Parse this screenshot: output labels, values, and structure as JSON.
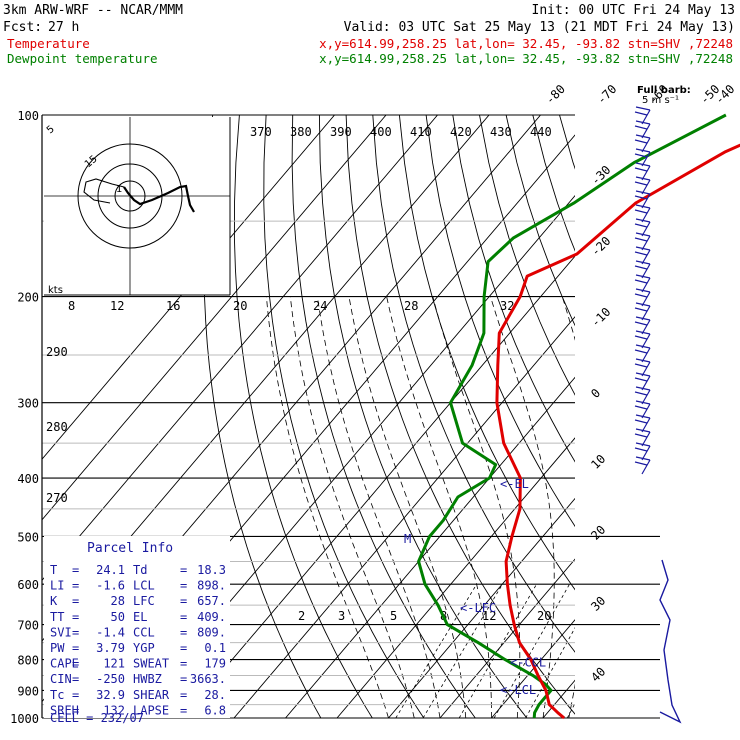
{
  "header": {
    "model": "3km ARW-WRF -- NCAR/MMM",
    "init": "Init: 00 UTC Fri 24 May 13",
    "fcst_label": "Fcst:",
    "fcst_value": "27 h",
    "valid": "Valid: 03 UTC Sat 25 May 13 (21 MDT Fri 24 May 13)"
  },
  "legend": [
    {
      "name": "Temperature",
      "info": "x,y=614.99,258.25   lat,lon= 32.45, -93.82   stn=SHV ,72248",
      "color": "#e00000"
    },
    {
      "name": "Dewpoint temperature",
      "info": "x,y=614.99,258.25   lat,lon= 32.45, -93.82   stn=SHV ,72248",
      "color": "#008000"
    }
  ],
  "full_barb": {
    "line1": "Full barb:",
    "line2": "5 m s⁻¹"
  },
  "hodograph": {
    "units": "kts",
    "ring_labels": [
      "5",
      "10",
      "15"
    ],
    "marker": "1"
  },
  "chart_data": {
    "type": "line",
    "title": "",
    "xlabel": "",
    "ylabel": "",
    "y_log_scale": true,
    "y_reversed": true,
    "ylim": [
      1000,
      100
    ],
    "pressure_levels": [
      100,
      200,
      300,
      400,
      500,
      600,
      700,
      800,
      900,
      1000
    ],
    "pressure_labels": [
      "100",
      "200",
      "300",
      "400",
      "500",
      "600",
      "700",
      "800",
      "900",
      "1000"
    ],
    "minor_pressure_levels": [
      150,
      250,
      350,
      450,
      550,
      650,
      750,
      850,
      950
    ],
    "isotherm_labels": [
      "-80",
      "-70",
      "-60",
      "-50",
      "-40",
      "-30",
      "-20",
      "-10",
      "0",
      "10",
      "20",
      "30",
      "40"
    ],
    "theta_e_labels": [
      "370",
      "380",
      "390",
      "400",
      "410",
      "420",
      "430",
      "440"
    ],
    "theta_labels_left": [
      "290",
      "280",
      "270"
    ],
    "mixing_ratio_labels_top": [
      "8",
      "12",
      "16",
      "20",
      "24",
      "28",
      "32"
    ],
    "mixing_ratio_labels_bottom": [
      "2",
      "3",
      "5",
      "8",
      "12",
      "20"
    ],
    "series": [
      {
        "name": "Temperature",
        "color": "#e00000",
        "points": [
          [
            100,
            -28
          ],
          [
            115,
            -38
          ],
          [
            140,
            -47
          ],
          [
            170,
            -50
          ],
          [
            185,
            -56
          ],
          [
            200,
            -54
          ],
          [
            230,
            -52
          ],
          [
            260,
            -47
          ],
          [
            300,
            -41
          ],
          [
            350,
            -33
          ],
          [
            400,
            -24
          ],
          [
            450,
            -19
          ],
          [
            500,
            -16
          ],
          [
            550,
            -13
          ],
          [
            600,
            -9
          ],
          [
            650,
            -5
          ],
          [
            700,
            -1
          ],
          [
            750,
            3
          ],
          [
            800,
            8
          ],
          [
            850,
            12
          ],
          [
            900,
            16
          ],
          [
            950,
            19
          ],
          [
            980,
            22
          ],
          [
            1000,
            24.1
          ]
        ]
      },
      {
        "name": "Dewpoint temperature",
        "color": "#008000",
        "points": [
          [
            100,
            -44
          ],
          [
            120,
            -54
          ],
          [
            140,
            -59
          ],
          [
            160,
            -65
          ],
          [
            175,
            -66
          ],
          [
            200,
            -61
          ],
          [
            230,
            -55
          ],
          [
            260,
            -52
          ],
          [
            300,
            -50
          ],
          [
            350,
            -41
          ],
          [
            380,
            -31
          ],
          [
            400,
            -30
          ],
          [
            430,
            -33
          ],
          [
            470,
            -32
          ],
          [
            500,
            -32
          ],
          [
            550,
            -30
          ],
          [
            600,
            -25
          ],
          [
            650,
            -19
          ],
          [
            700,
            -14
          ],
          [
            750,
            -5
          ],
          [
            800,
            3
          ],
          [
            850,
            11
          ],
          [
            880,
            15
          ],
          [
            900,
            17
          ],
          [
            950,
            17
          ],
          [
            980,
            17.5
          ],
          [
            1000,
            18.3
          ]
        ]
      }
    ],
    "level_annotations": [
      {
        "label": "<-EL",
        "p": 409
      },
      {
        "label": "<-LFC",
        "p": 657
      },
      {
        "label": "<-CCL",
        "p": 809
      },
      {
        "label": "<-LCL",
        "p": 898
      },
      {
        "label": "M",
        "p": 505
      }
    ]
  },
  "parcel_info": {
    "title": "Parcel Info",
    "rows": [
      {
        "k1": "T",
        "v1": "24.1",
        "k2": "Td",
        "v2": "18.3"
      },
      {
        "k1": "LI",
        "v1": "-1.6",
        "k2": "LCL",
        "v2": "898."
      },
      {
        "k1": "K",
        "v1": "28",
        "k2": "LFC",
        "v2": "657."
      },
      {
        "k1": "TT",
        "v1": "50",
        "k2": "EL",
        "v2": "409."
      },
      {
        "k1": "SVI",
        "v1": "-1.4",
        "k2": "CCL",
        "v2": "809."
      },
      {
        "k1": "PW",
        "v1": "3.79",
        "k2": "YGP",
        "v2": "0.1"
      },
      {
        "k1": "CAPE",
        "v1": "121",
        "k2": "SWEAT",
        "v2": "179"
      },
      {
        "k1": "CIN",
        "v1": "-250",
        "k2": "HWBZ",
        "v2": "3663."
      },
      {
        "k1": "Tc",
        "v1": "32.9",
        "k2": "SHEAR",
        "v2": "28."
      },
      {
        "k1": "SREH",
        "v1": "132",
        "k2": "LAPSE",
        "v2": "6.8"
      }
    ],
    "cell": "CELL = 232/07"
  }
}
